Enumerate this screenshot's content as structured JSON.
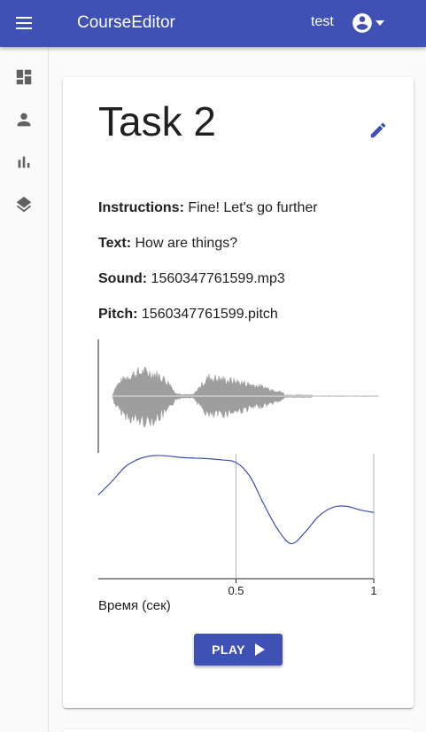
{
  "appbar": {
    "title": "CourseEditor",
    "user": "test",
    "menu_icon": "menu-icon",
    "account_icon": "account-circle-icon"
  },
  "sidebar": {
    "items": [
      {
        "icon": "dashboard-icon"
      },
      {
        "icon": "person-icon"
      },
      {
        "icon": "bar-chart-icon"
      },
      {
        "icon": "layers-icon"
      }
    ]
  },
  "task": {
    "title": "Task 2",
    "fields": [
      {
        "label": "Instructions:",
        "value": "Fine! Let's go further"
      },
      {
        "label": "Text:",
        "value": "How are things?"
      },
      {
        "label": "Sound:",
        "value": "1560347761599.mp3"
      },
      {
        "label": "Pitch:",
        "value": "1560347761599.pitch"
      }
    ],
    "play_label": "PLAY"
  },
  "chart_data": {
    "type": "line",
    "xlabel": "Время (сек)",
    "xlim": [
      0,
      1
    ],
    "ticks": [
      "0.5",
      "1"
    ],
    "series": [
      {
        "x": [
          0,
          0.05,
          0.1,
          0.15,
          0.2,
          0.25,
          0.3,
          0.35,
          0.4,
          0.45,
          0.5,
          0.55,
          0.6,
          0.65,
          0.7,
          0.75,
          0.8,
          0.85,
          0.9,
          0.95,
          1.0
        ],
        "values": [
          0.67,
          0.78,
          0.9,
          0.96,
          0.985,
          0.982,
          0.97,
          0.965,
          0.96,
          0.95,
          0.93,
          0.82,
          0.6,
          0.4,
          0.28,
          0.37,
          0.5,
          0.57,
          0.58,
          0.55,
          0.53
        ]
      }
    ],
    "accent": "#3f51b5",
    "waveform_color": "#9e9e9e"
  }
}
